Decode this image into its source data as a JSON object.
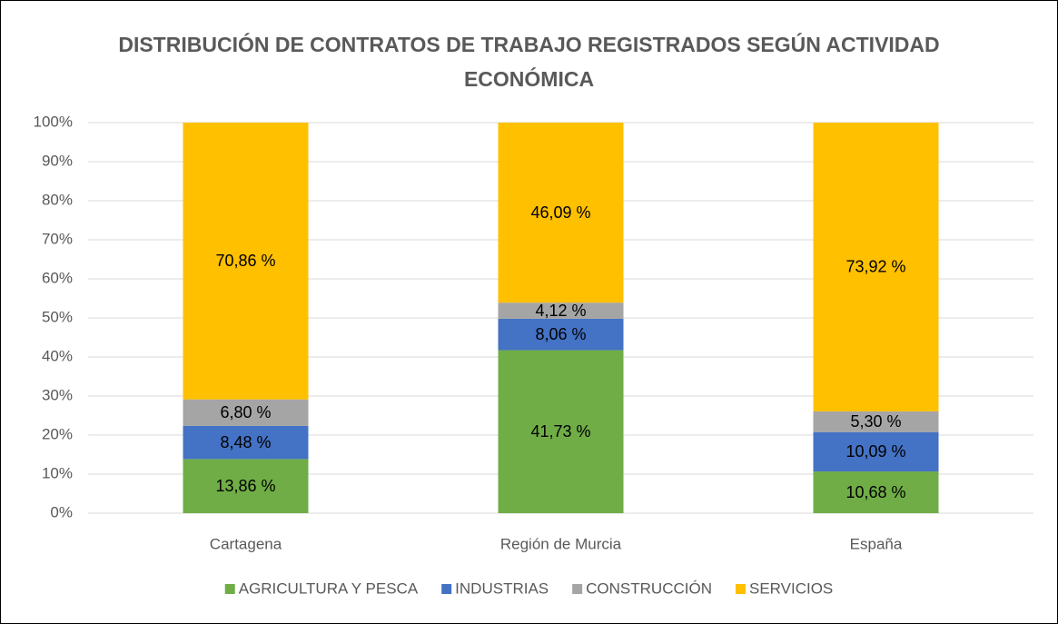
{
  "chart_data": {
    "type": "stacked_bar",
    "title": "DISTRIBUCIÓN DE CONTRATOS DE TRABAJO REGISTRADOS SEGÚN ACTIVIDAD ECONÓMICA",
    "categories": [
      "Cartagena",
      "Región de Murcia",
      "España"
    ],
    "series": [
      {
        "name": "AGRICULTURA Y PESCA",
        "color": "#70ad47",
        "values": [
          13.86,
          41.73,
          10.68
        ],
        "value_labels": [
          "13,86 %",
          "41,73 %",
          "10,68 %"
        ]
      },
      {
        "name": "INDUSTRIAS",
        "color": "#4472c4",
        "values": [
          8.48,
          8.06,
          10.09
        ],
        "value_labels": [
          "8,48 %",
          "8,06 %",
          "10,09 %"
        ]
      },
      {
        "name": "CONSTRUCCIÓN",
        "color": "#a5a5a5",
        "values": [
          6.8,
          4.12,
          5.3
        ],
        "value_labels": [
          "6,80 %",
          "4,12 %",
          "5,30 %"
        ]
      },
      {
        "name": "SERVICIOS",
        "color": "#ffc000",
        "values": [
          70.86,
          46.09,
          73.92
        ],
        "value_labels": [
          "70,86 %",
          "46,09 %",
          "73,92 %"
        ]
      }
    ],
    "ylim": [
      0,
      100
    ],
    "yticks": [
      {
        "value": 0,
        "label": "0%"
      },
      {
        "value": 10,
        "label": "10%"
      },
      {
        "value": 20,
        "label": "20%"
      },
      {
        "value": 30,
        "label": "30%"
      },
      {
        "value": 40,
        "label": "40%"
      },
      {
        "value": 50,
        "label": "50%"
      },
      {
        "value": 60,
        "label": "60%"
      },
      {
        "value": 70,
        "label": "70%"
      },
      {
        "value": 80,
        "label": "80%"
      },
      {
        "value": 90,
        "label": "90%"
      },
      {
        "value": 100,
        "label": "100%"
      }
    ],
    "grid": true,
    "legend": "bottom"
  }
}
